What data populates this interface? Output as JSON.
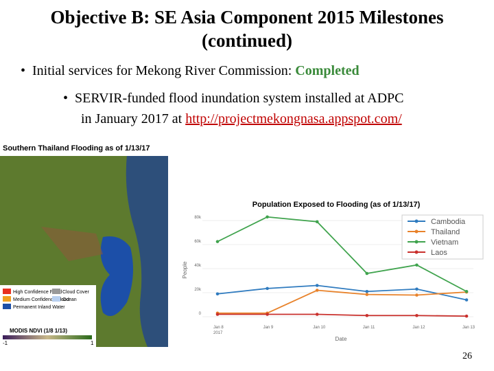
{
  "slide": {
    "title_line1": "Objective B: SE Asia Component 2015 Milestones",
    "title_line2": "(continued)",
    "bullet1": {
      "text": "Initial services for Mekong River Commission: ",
      "status": "Completed"
    },
    "bullet2": {
      "text_line1": "SERVIR-funded flood inundation system installed at ADPC",
      "text_line2": "in January 2017 at ",
      "link": "http://projectmekongnasa.appspot.com/"
    },
    "page_number": "26"
  },
  "map": {
    "title": "Southern Thailand Flooding as of 1/13/17",
    "legend": [
      "High Confidence Flood",
      "Medium Confidence Flood",
      "Permanent Inland Water",
      "Cloud Cover",
      "Ocean"
    ],
    "ndvi_label": "MODIS NDVI (1/8  1/13)",
    "ndvi_min": "-1",
    "ndvi_max": "1"
  },
  "chart": {
    "type": "line",
    "title": "Population Exposed to Flooding (as of 1/13/17)",
    "y_label": "People",
    "x_label": "Date",
    "categories": [
      "Jan 8",
      "Jan 9",
      "Jan 10",
      "Jan 11",
      "Jan 12",
      "Jan 13"
    ],
    "year": "2017",
    "ylim": [
      0,
      88000
    ],
    "yticks": [
      0,
      {
        "value": 20000,
        "label": "20k"
      },
      {
        "value": 40000,
        "label": "40k"
      },
      {
        "value": 60000,
        "label": "60k"
      },
      {
        "value": 80000,
        "label": "80k"
      }
    ],
    "series": [
      {
        "name": "Cambodia",
        "color": "#2f7bbf",
        "values": [
          19000,
          23500,
          26000,
          21000,
          23000,
          14000
        ]
      },
      {
        "name": "Thailand",
        "color": "#e8822a",
        "values": [
          3000,
          3000,
          22000,
          18500,
          18000,
          20500
        ]
      },
      {
        "name": "Vietnam",
        "color": "#3fa34d",
        "values": [
          62500,
          83000,
          79000,
          36000,
          43000,
          21000
        ]
      },
      {
        "name": "Laos",
        "color": "#c9302c",
        "values": [
          2000,
          2000,
          2000,
          1000,
          1000,
          500
        ]
      }
    ]
  }
}
